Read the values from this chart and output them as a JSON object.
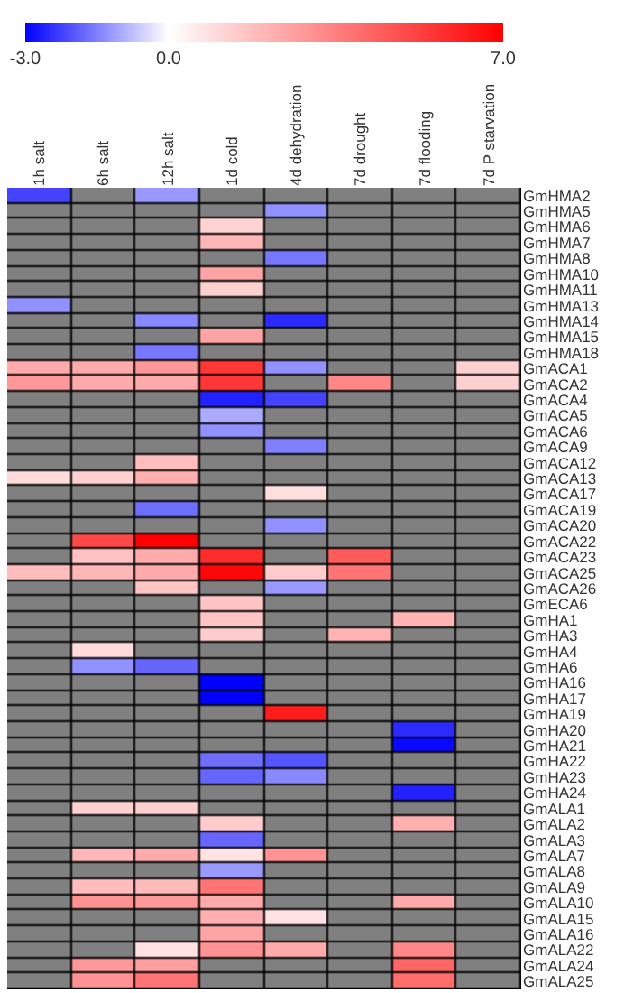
{
  "chart_data": {
    "type": "heatmap",
    "categories": [
      "1h salt",
      "6h salt",
      "12h salt",
      "1d cold",
      "4d dehydration",
      "7d drought",
      "7d flooding",
      "7d P starvation"
    ],
    "y_categories": [
      "GmHMA2",
      "GmHMA5",
      "GmHMA6",
      "GmHMA7",
      "GmHMA8",
      "GmHMA10",
      "GmHMA11",
      "GmHMA13",
      "GmHMA14",
      "GmHMA15",
      "GmHMA18",
      "GmACA1",
      "GmACA2",
      "GmACA4",
      "GmACA5",
      "GmACA6",
      "GmACA9",
      "GmACA12",
      "GmACA13",
      "GmACA17",
      "GmACA19",
      "GmACA20",
      "GmACA22",
      "GmACA23",
      "GmACA25",
      "GmACA26",
      "GmECA6",
      "GmHA1",
      "GmHA3",
      "GmHA4",
      "GmHA6",
      "GmHA16",
      "GmHA17",
      "GmHA19",
      "GmHA20",
      "GmHA21",
      "GmHA22",
      "GmHA23",
      "GmHA24",
      "GmALA1",
      "GmALA2",
      "GmALA3",
      "GmALA7",
      "GmALA8",
      "GmALA9",
      "GmALA10",
      "GmALA15",
      "GmALA16",
      "GmALA22",
      "GmALA24",
      "GmALA25"
    ],
    "cells": [
      [
        -2.2,
        null,
        -1.2,
        null,
        null,
        null,
        null,
        null
      ],
      [
        null,
        null,
        null,
        null,
        -1.3,
        null,
        null,
        null
      ],
      [
        null,
        null,
        null,
        1.2,
        null,
        null,
        null,
        null
      ],
      [
        null,
        null,
        null,
        2.0,
        null,
        null,
        null,
        null
      ],
      [
        null,
        null,
        null,
        null,
        -1.6,
        null,
        null,
        null
      ],
      [
        null,
        null,
        null,
        2.5,
        null,
        null,
        null,
        null
      ],
      [
        null,
        null,
        null,
        1.3,
        null,
        null,
        null,
        null
      ],
      [
        -1.3,
        null,
        null,
        null,
        null,
        null,
        null,
        null
      ],
      [
        null,
        null,
        -1.4,
        null,
        -2.5,
        null,
        null,
        null
      ],
      [
        null,
        null,
        null,
        2.5,
        null,
        null,
        null,
        null
      ],
      [
        null,
        null,
        -1.6,
        null,
        null,
        null,
        null,
        null
      ],
      [
        2.3,
        2.3,
        2.8,
        5.5,
        -1.3,
        null,
        null,
        1.3
      ],
      [
        2.8,
        2.3,
        2.3,
        5.5,
        null,
        3.3,
        null,
        1.3
      ],
      [
        null,
        null,
        null,
        -2.6,
        -2.2,
        null,
        null,
        null
      ],
      [
        null,
        null,
        null,
        -1.0,
        null,
        null,
        null,
        null
      ],
      [
        null,
        null,
        null,
        -1.3,
        null,
        null,
        null,
        null
      ],
      [
        null,
        null,
        null,
        null,
        -1.5,
        null,
        null,
        null
      ],
      [
        null,
        null,
        1.8,
        null,
        null,
        null,
        null,
        null
      ],
      [
        1.0,
        1.3,
        2.2,
        null,
        null,
        null,
        null,
        null
      ],
      [
        null,
        null,
        null,
        null,
        0.9,
        null,
        null,
        null
      ],
      [
        null,
        null,
        -1.7,
        null,
        null,
        null,
        null,
        null
      ],
      [
        null,
        null,
        null,
        null,
        -1.3,
        null,
        null,
        null
      ],
      [
        null,
        5.0,
        7.0,
        null,
        null,
        null,
        null,
        null
      ],
      [
        null,
        1.7,
        2.3,
        5.8,
        null,
        4.5,
        null,
        null
      ],
      [
        1.8,
        2.0,
        2.3,
        6.8,
        1.4,
        3.8,
        null,
        null
      ],
      [
        null,
        null,
        1.6,
        null,
        -1.2,
        null,
        null,
        null
      ],
      [
        null,
        null,
        null,
        1.6,
        null,
        null,
        null,
        null
      ],
      [
        null,
        null,
        null,
        1.6,
        null,
        null,
        2.1,
        null
      ],
      [
        null,
        null,
        null,
        1.4,
        null,
        2.1,
        null,
        null
      ],
      [
        null,
        1.0,
        null,
        null,
        null,
        null,
        null,
        null
      ],
      [
        null,
        -1.3,
        -1.8,
        null,
        null,
        null,
        null,
        null
      ],
      [
        null,
        null,
        null,
        -3.0,
        null,
        null,
        null,
        null
      ],
      [
        null,
        null,
        null,
        -3.0,
        null,
        null,
        null,
        null
      ],
      [
        null,
        null,
        null,
        null,
        6.2,
        null,
        null,
        null
      ],
      [
        null,
        null,
        null,
        null,
        null,
        null,
        -2.5,
        null
      ],
      [
        null,
        null,
        null,
        null,
        null,
        null,
        -2.9,
        null
      ],
      [
        null,
        null,
        null,
        -1.7,
        -2.0,
        null,
        null,
        null
      ],
      [
        null,
        null,
        null,
        -1.8,
        -1.4,
        null,
        null,
        null
      ],
      [
        null,
        null,
        null,
        null,
        null,
        null,
        -2.6,
        null
      ],
      [
        null,
        1.3,
        1.3,
        null,
        null,
        null,
        null,
        null
      ],
      [
        null,
        null,
        null,
        1.4,
        null,
        null,
        2.2,
        null
      ],
      [
        null,
        null,
        null,
        -1.8,
        null,
        null,
        null,
        null
      ],
      [
        null,
        2.0,
        2.3,
        0.8,
        3.0,
        null,
        null,
        null
      ],
      [
        null,
        null,
        null,
        -1.2,
        null,
        null,
        null,
        null
      ],
      [
        null,
        1.8,
        1.9,
        3.8,
        null,
        null,
        null,
        null
      ],
      [
        null,
        3.0,
        2.8,
        2.3,
        null,
        null,
        2.3,
        null
      ],
      [
        null,
        null,
        null,
        2.2,
        0.8,
        null,
        null,
        null
      ],
      [
        null,
        null,
        null,
        2.5,
        null,
        null,
        null,
        null
      ],
      [
        null,
        null,
        0.8,
        3.0,
        2.3,
        null,
        3.3,
        null
      ],
      [
        null,
        2.8,
        2.6,
        null,
        null,
        null,
        4.2,
        null
      ],
      [
        null,
        3.0,
        3.8,
        null,
        null,
        null,
        4.0,
        null
      ]
    ],
    "clim": [
      -3,
      7
    ],
    "cticks": [
      {
        "value": -3,
        "label": "-3.0"
      },
      {
        "value": 0,
        "label": "0.0"
      },
      {
        "value": 7,
        "label": "7.0"
      }
    ]
  }
}
